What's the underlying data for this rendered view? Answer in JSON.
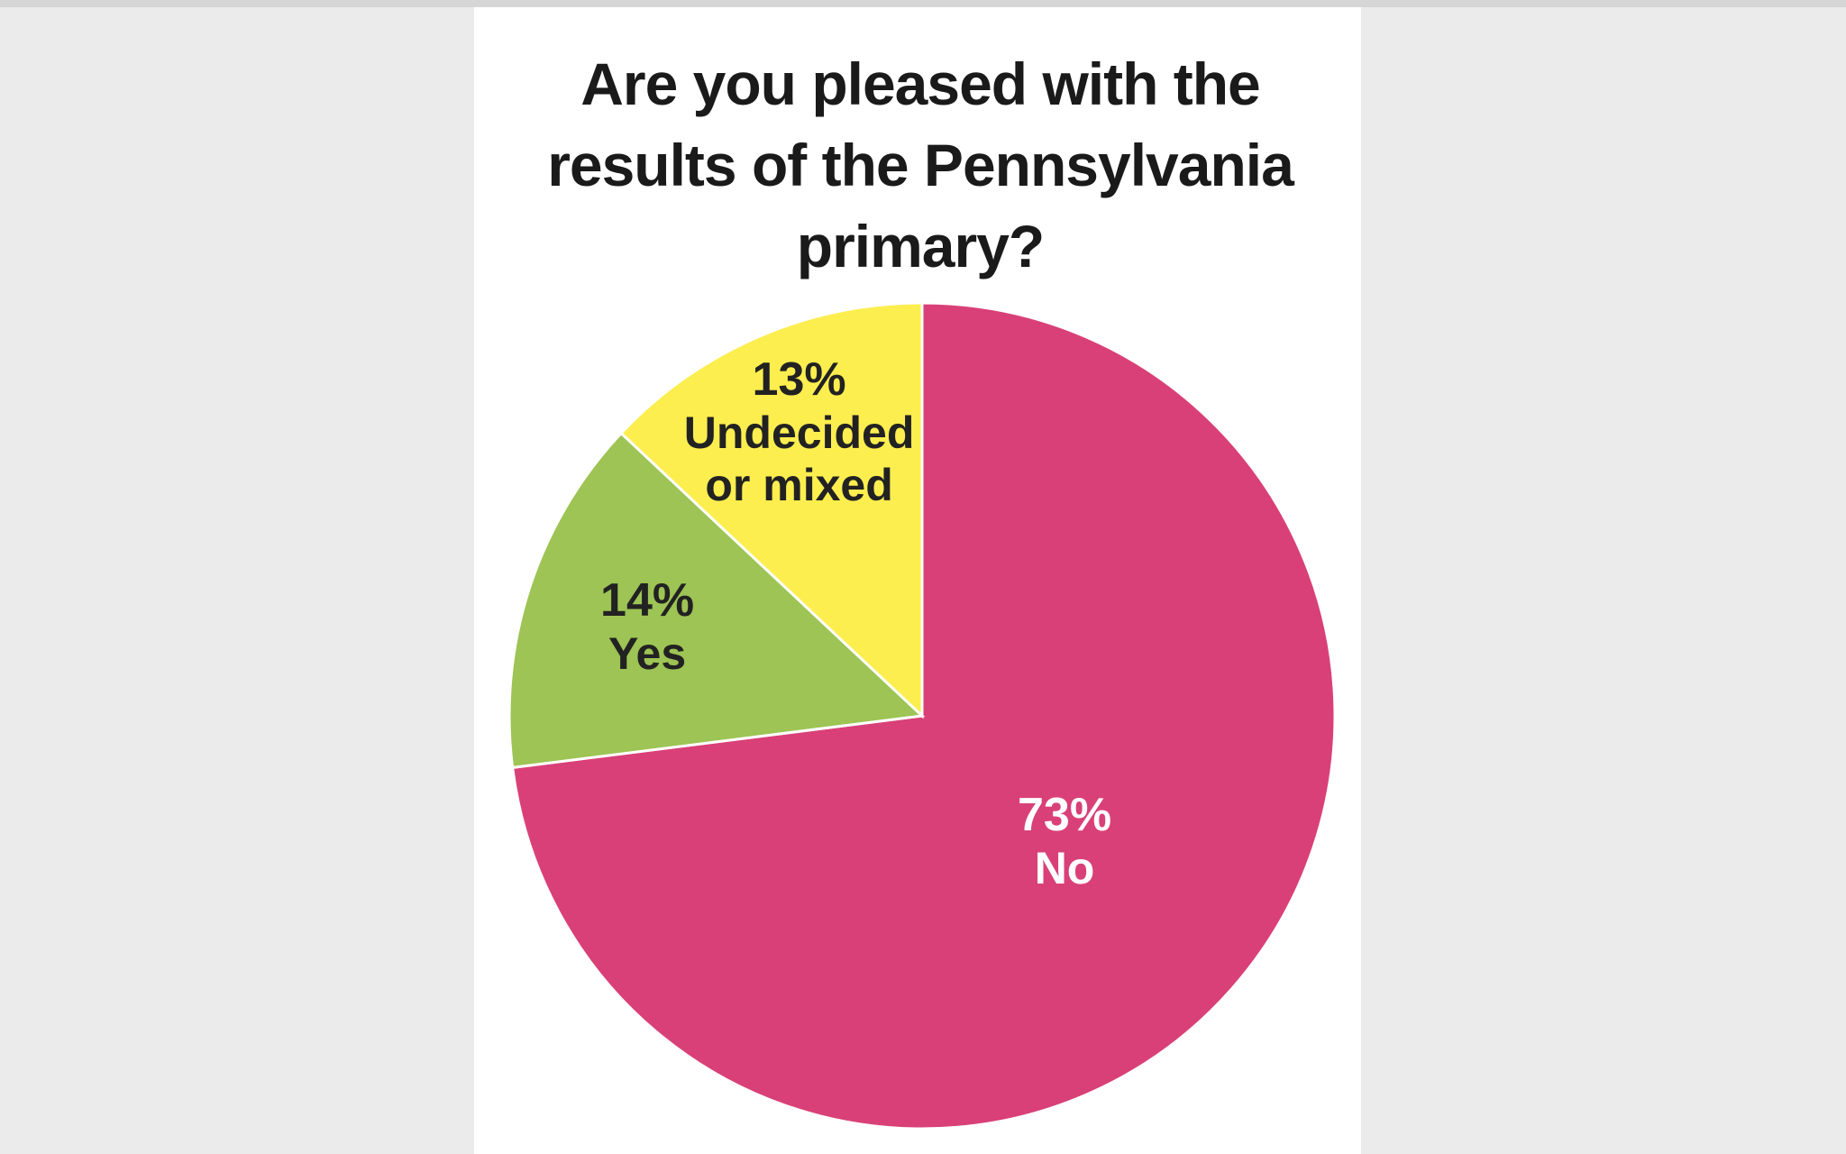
{
  "chart_data": {
    "type": "pie",
    "title": "Are you pleased with the results of the Pennsylvania primary?",
    "categories": [
      "No",
      "Yes",
      "Undecided or mixed"
    ],
    "values": [
      73,
      14,
      13
    ],
    "value_labels": [
      "73%",
      "14%",
      "13%"
    ],
    "colors": [
      "#d94077",
      "#9dc454",
      "#fcee4f"
    ]
  }
}
